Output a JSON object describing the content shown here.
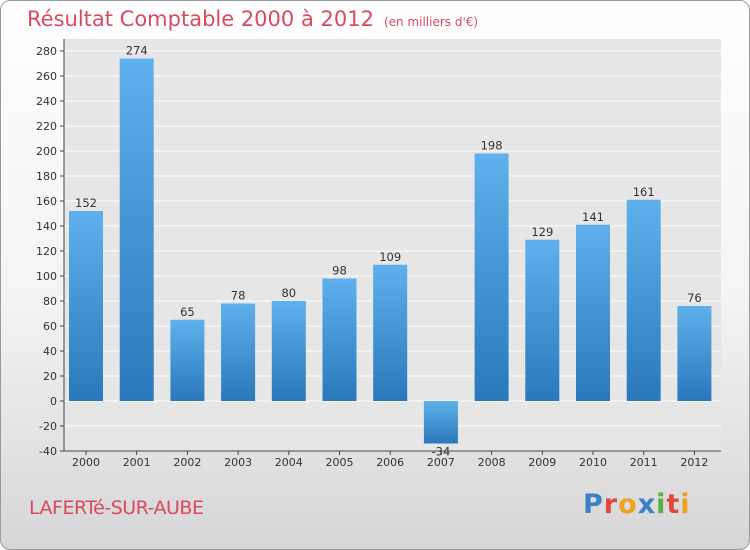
{
  "header": {
    "title": "Résultat Comptable 2000 à 2012",
    "unit": "(en milliers d'€)"
  },
  "footer": {
    "commune": "LAFERTé-SUR-AUBE",
    "logo_text": "Proxiti",
    "logo_colors": [
      "#3b7fc8",
      "#e0483c",
      "#f0a020",
      "#3b7fc8",
      "#58b040",
      "#e0483c",
      "#f0a020"
    ]
  },
  "colors": {
    "title": "#d94a5e",
    "bar_top": "#5fb0ec",
    "bar_bottom": "#2a78bb",
    "axis": "#444444",
    "grid": "#ffffff"
  },
  "chart_data": {
    "type": "bar",
    "title": "Résultat Comptable 2000 à 2012",
    "xlabel": "",
    "ylabel": "",
    "categories": [
      "2000",
      "2001",
      "2002",
      "2003",
      "2004",
      "2005",
      "2006",
      "2007",
      "2008",
      "2009",
      "2010",
      "2011",
      "2012"
    ],
    "values": [
      152,
      274,
      65,
      78,
      80,
      98,
      109,
      -34,
      198,
      129,
      141,
      161,
      76
    ],
    "ylim": [
      -40,
      280
    ],
    "yticks": [
      -40,
      -20,
      0,
      20,
      40,
      60,
      80,
      100,
      120,
      140,
      160,
      180,
      200,
      220,
      240,
      260,
      280
    ],
    "grid": true,
    "legend": "none"
  }
}
